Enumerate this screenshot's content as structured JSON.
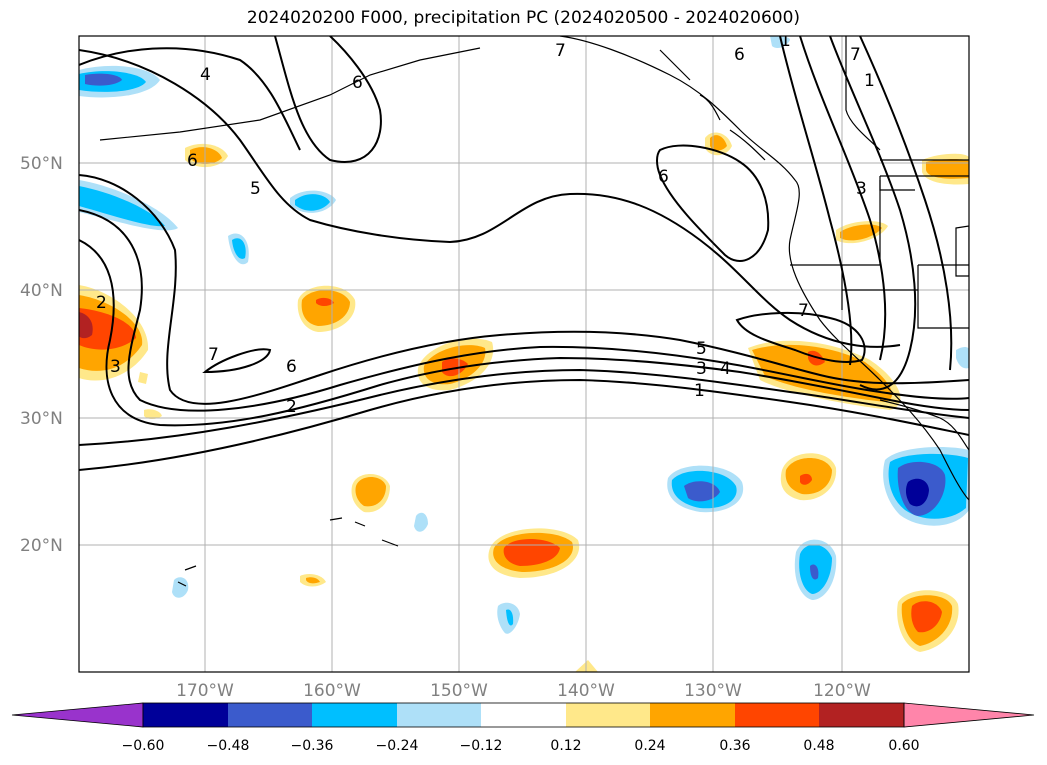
{
  "title": "2024020200 F000, precipitation PC (2024020500 - 2024020600)",
  "map": {
    "lat_labels": [
      "50°N",
      "40°N",
      "30°N",
      "20°N"
    ],
    "lon_labels": [
      "170°W",
      "160°W",
      "150°W",
      "140°W",
      "130°W",
      "120°W"
    ],
    "contour_labels": [
      "4",
      "5",
      "6",
      "7",
      "6",
      "1",
      "3",
      "7",
      "6",
      "2",
      "7",
      "5",
      "4",
      "3",
      "1",
      "6",
      "2",
      "3",
      "6",
      "7",
      "1"
    ]
  },
  "colorbar": {
    "colors": [
      "#9933cc",
      "#000099",
      "#3b5bcc",
      "#00bfff",
      "#aee0f8",
      "#ffffff",
      "#ffe88a",
      "#ffa500",
      "#ff4500",
      "#b22222",
      "#ff85aa"
    ],
    "ticks": [
      "−0.60",
      "−0.48",
      "−0.36",
      "−0.24",
      "−0.12",
      "0.12",
      "0.24",
      "0.36",
      "0.48",
      "0.60"
    ]
  }
}
